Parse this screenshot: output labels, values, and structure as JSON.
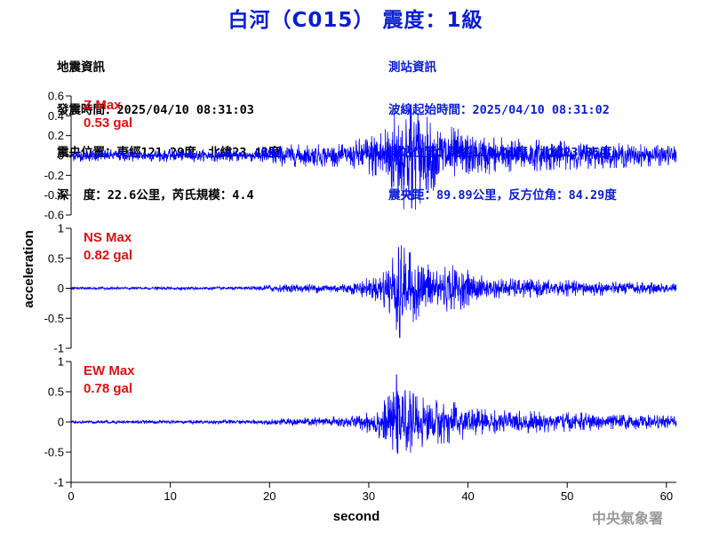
{
  "header": {
    "title": "白河（C015） 震度：1級"
  },
  "quake_info": {
    "heading": "地震資訊",
    "origin_time": "發震時間：2025/04/10 08:31:03",
    "epicenter": "震央位置：東經121.29度，北緯23.43度",
    "depth_magnitude": "深  度：22.6公里，芮氏規模：4.4"
  },
  "station_info": {
    "heading": "測站資訊",
    "wave_start": "波線起始時間：2025/04/10 08:31:02",
    "station_location": "測站位置：東經120.41度，北緯23.35度",
    "distance_azimuth": "震央距：89.89公里，反方位角：84.29度"
  },
  "watermark": "中央氣象署",
  "colors": {
    "trace": "#0000ff",
    "title": "#0a1ed6",
    "pga_label": "#e01010"
  },
  "chart_data": {
    "type": "line",
    "xlabel": "second",
    "ylabel": "acceleration",
    "xlim": [
      0,
      61
    ],
    "x_ticks": [
      0,
      10,
      20,
      30,
      40,
      50,
      60
    ],
    "panels": [
      {
        "name": "Z",
        "max_label": "Z Max",
        "max_value": "0.53 gal",
        "ylim": [
          -0.6,
          0.6
        ],
        "y_ticks": [
          -0.6,
          -0.4,
          -0.2,
          0,
          0.2,
          0.4,
          0.6
        ],
        "y_tick_labels": [
          "-0.6",
          "-0.4",
          "-0.2",
          "0",
          "0.2",
          "0.4",
          "0.6"
        ],
        "noise_level": 0.03,
        "peak_positive": 0.5,
        "peak_negative": -0.53,
        "peak_time": 34.2,
        "envelope": [
          [
            0,
            0.05
          ],
          [
            18.5,
            0.05
          ],
          [
            19.5,
            0.09
          ],
          [
            28,
            0.09
          ],
          [
            30.5,
            0.2
          ],
          [
            32,
            0.32
          ],
          [
            33,
            0.42
          ],
          [
            34.5,
            0.46
          ],
          [
            36,
            0.3
          ],
          [
            38,
            0.24
          ],
          [
            41,
            0.16
          ],
          [
            46,
            0.13
          ],
          [
            55,
            0.1
          ],
          [
            61,
            0.08
          ]
        ]
      },
      {
        "name": "NS",
        "max_label": "NS Max",
        "max_value": "0.82 gal",
        "ylim": [
          -1,
          1
        ],
        "y_ticks": [
          -1,
          -0.5,
          0,
          0.5,
          1
        ],
        "y_tick_labels": [
          "-1",
          "-0.5",
          "0",
          "0.5",
          "1"
        ],
        "noise_level": 0.01,
        "peak_positive": 0.68,
        "peak_negative": -0.82,
        "peak_time": 33.0,
        "envelope": [
          [
            0,
            0.02
          ],
          [
            18,
            0.02
          ],
          [
            20,
            0.05
          ],
          [
            28,
            0.07
          ],
          [
            31,
            0.18
          ],
          [
            32,
            0.4
          ],
          [
            33,
            0.6
          ],
          [
            35,
            0.4
          ],
          [
            37,
            0.32
          ],
          [
            39,
            0.3
          ],
          [
            42,
            0.14
          ],
          [
            50,
            0.11
          ],
          [
            61,
            0.07
          ]
        ]
      },
      {
        "name": "EW",
        "max_label": "EW Max",
        "max_value": "0.78 gal",
        "ylim": [
          -1,
          1
        ],
        "y_ticks": [
          -1,
          -0.5,
          0,
          0.5,
          1
        ],
        "y_tick_labels": [
          "-1",
          "-0.5",
          "0",
          "0.5",
          "1"
        ],
        "noise_level": 0.01,
        "peak_positive": 0.78,
        "peak_negative": -0.52,
        "peak_time": 32.8,
        "envelope": [
          [
            0,
            0.02
          ],
          [
            19,
            0.03
          ],
          [
            22,
            0.05
          ],
          [
            29,
            0.09
          ],
          [
            31,
            0.22
          ],
          [
            32.5,
            0.4
          ],
          [
            34,
            0.42
          ],
          [
            36,
            0.3
          ],
          [
            38,
            0.28
          ],
          [
            42,
            0.16
          ],
          [
            50,
            0.13
          ],
          [
            61,
            0.08
          ]
        ]
      }
    ]
  }
}
